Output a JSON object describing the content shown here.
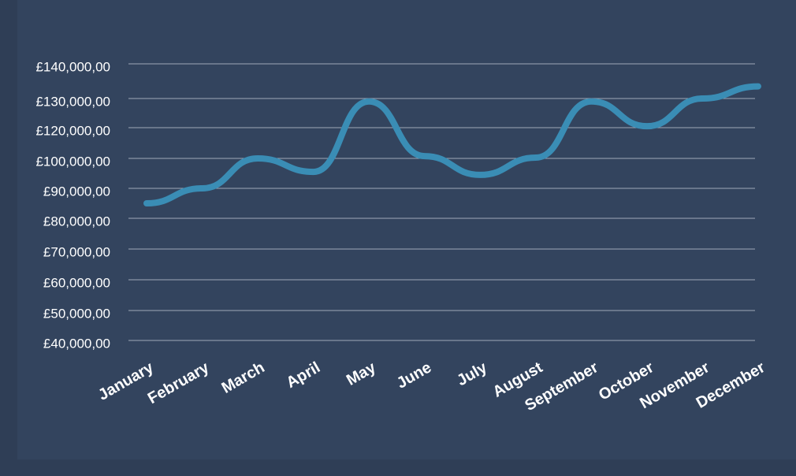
{
  "chart_data": {
    "type": "line",
    "categories": [
      "January",
      "February",
      "March",
      "April",
      "May",
      "June",
      "July",
      "August",
      "September",
      "October",
      "November",
      "December"
    ],
    "series": [
      {
        "values": [
          85000,
          90000,
          100000,
          95500,
          129000,
          101500,
          94500,
          100500,
          129000,
          120500,
          130000,
          133500
        ]
      }
    ],
    "y_ticks": [
      {
        "value": 140000,
        "label": "£140,000,00"
      },
      {
        "value": 130000,
        "label": "£130,000,00"
      },
      {
        "value": 120000,
        "label": "£120,000,00"
      },
      {
        "value": 100000,
        "label": "£100,000,00"
      },
      {
        "value": 90000,
        "label": "£90,000,00"
      },
      {
        "value": 80000,
        "label": "£80,000,00"
      },
      {
        "value": 70000,
        "label": "£70,000,00"
      },
      {
        "value": 60000,
        "label": "£60,000,00"
      },
      {
        "value": 50000,
        "label": "£50,000,00"
      },
      {
        "value": 40000,
        "label": "£40,000,00"
      }
    ],
    "grid": true,
    "colors": {
      "background": "#33445e",
      "line": "#3a8db5",
      "text": "#ffffff",
      "grid": "#c3cad6"
    }
  }
}
